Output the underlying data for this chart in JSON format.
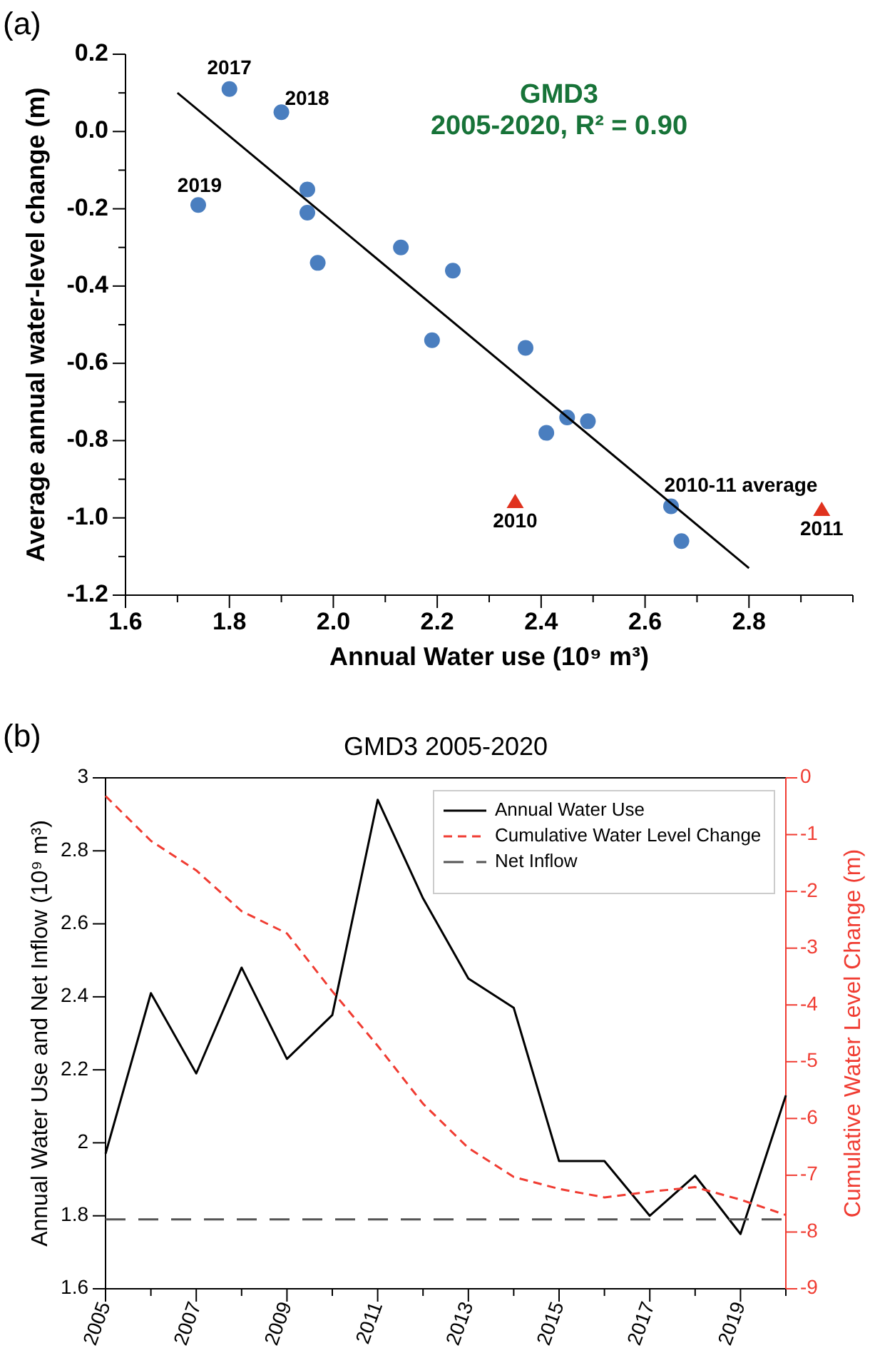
{
  "chart_data": [
    {
      "type": "scatter",
      "xlabel": "Annual Water use (10⁹ m³)",
      "ylabel": "Average annual water-level change (m)",
      "xlim": [
        1.6,
        3.0
      ],
      "xticks": [
        1.6,
        {
          "value": 1.7,
          "label": null
        },
        1.8,
        {
          "value": 1.9,
          "label": null
        },
        {
          "value": 2.0,
          "label": "2.0"
        },
        {
          "value": 2.1,
          "label": null
        },
        2.2,
        {
          "value": 2.3,
          "label": null
        },
        2.4,
        {
          "value": 2.5,
          "label": null
        },
        2.6,
        {
          "value": 2.7,
          "label": null
        },
        2.8,
        {
          "value": 2.9,
          "label": null
        },
        {
          "value": 3.0,
          "label": null
        }
      ],
      "ylim": [
        -1.2,
        0.2
      ],
      "yticks": [
        -1.2,
        {
          "value": -1.1,
          "label": null
        },
        {
          "value": -1.0,
          "label": "-1.0"
        },
        {
          "value": -0.9,
          "label": null
        },
        -0.8,
        {
          "value": -0.7,
          "label": null
        },
        -0.6,
        {
          "value": -0.5,
          "label": null
        },
        -0.4,
        {
          "value": -0.3,
          "label": null
        },
        -0.2,
        {
          "value": -0.1,
          "label": null
        },
        {
          "value": 0,
          "label": "0.0"
        },
        {
          "value": 0.1,
          "label": null
        },
        0.2
      ],
      "grid": false,
      "legend": false,
      "series": [
        {
          "marker": "circle",
          "color": "#4a7ebf",
          "x": [
            1.8,
            1.9,
            1.74,
            1.95,
            1.95,
            1.97,
            2.13,
            2.23,
            2.19,
            2.37,
            2.41,
            2.45,
            2.49,
            2.65,
            2.67
          ],
          "values": [
            0.11,
            0.05,
            -0.19,
            -0.15,
            -0.21,
            -0.34,
            -0.3,
            -0.36,
            -0.54,
            -0.56,
            -0.78,
            -0.74,
            -0.75,
            -0.97,
            -1.06
          ]
        },
        {
          "marker": "triangle",
          "color": "#e0321e",
          "x": [
            2.35,
            2.94
          ],
          "values": [
            -0.96,
            -0.98
          ]
        },
        {
          "type": "line",
          "marker": "none",
          "line_style": "solid",
          "color": "#000000",
          "x": [
            1.7,
            2.8
          ],
          "values": [
            0.1,
            -1.13
          ]
        }
      ],
      "annotations": [
        "(a)",
        "GMD3",
        "2005-2020, R² = 0.90",
        {
          "text": "2017",
          "x": 1.8,
          "y": 0.11
        },
        {
          "text": "2018",
          "x": 1.9,
          "y": 0.05
        },
        {
          "text": "2019",
          "x": 1.74,
          "y": -0.19
        },
        {
          "text": "2010",
          "x": 2.35,
          "y": -0.96
        },
        {
          "text": "2011",
          "x": 2.94,
          "y": -0.98
        },
        {
          "text": "2010-11 average",
          "x": 2.65,
          "y": -0.97
        }
      ]
    },
    {
      "type": "line",
      "title": "GMD3 2005-2020",
      "ylabel": "Annual Water Use and Net Inflow (10⁹ m³)",
      "y2label": "Cumulative Water Level Change (m)",
      "x": [
        2005,
        2006,
        2007,
        2008,
        2009,
        2010,
        2011,
        2012,
        2013,
        2014,
        2015,
        2016,
        2017,
        2018,
        2019,
        2020
      ],
      "xlim": [
        2005,
        2020
      ],
      "xticks": [
        2005,
        {
          "value": 2006,
          "label": null
        },
        2007,
        {
          "value": 2008,
          "label": null
        },
        2009,
        {
          "value": 2010,
          "label": null
        },
        2011,
        {
          "value": 2012,
          "label": null
        },
        2013,
        {
          "value": 2014,
          "label": null
        },
        2015,
        {
          "value": 2016,
          "label": null
        },
        2017,
        {
          "value": 2018,
          "label": null
        },
        2019,
        {
          "value": 2020,
          "label": null
        }
      ],
      "ylim": [
        1.6,
        3
      ],
      "yticks": [
        1.6,
        1.8,
        2,
        2.2,
        2.4,
        2.6,
        2.8,
        3
      ],
      "y2lim": [
        -9,
        0
      ],
      "y2ticks": [
        -9,
        -8,
        -7,
        -6,
        -5,
        -4,
        -3,
        -2,
        -1,
        0
      ],
      "grid": false,
      "legend": "top right",
      "series": [
        {
          "name": "Annual Water Use",
          "line_style": "solid",
          "color": "#000000",
          "values": [
            1.97,
            2.41,
            2.19,
            2.48,
            2.23,
            2.35,
            2.94,
            2.67,
            2.45,
            2.37,
            1.95,
            1.95,
            1.8,
            1.91,
            1.75,
            2.13
          ]
        },
        {
          "name": "Cumulative Water Level Change",
          "axis": "y2",
          "line_style": "dashed",
          "color": "#f03c32",
          "values": [
            -0.32,
            -1.11,
            -1.63,
            -2.35,
            -2.74,
            -3.76,
            -4.72,
            -5.74,
            -6.52,
            -7.03,
            -7.24,
            -7.39,
            -7.29,
            -7.21,
            -7.43,
            -7.7
          ]
        },
        {
          "name": "Net Inflow",
          "line_style": "longdash",
          "color": "#555555",
          "x": [
            2005,
            2020
          ],
          "values": [
            1.79,
            1.79
          ]
        }
      ],
      "annotations": [
        "(b)"
      ]
    }
  ]
}
